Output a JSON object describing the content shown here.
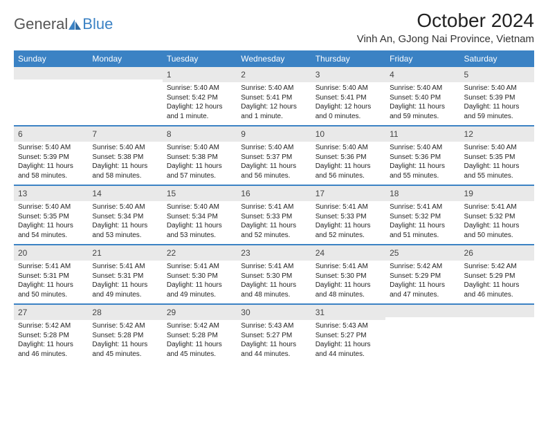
{
  "brand": {
    "part1": "General",
    "part2": "Blue"
  },
  "title": "October 2024",
  "location": "Vinh An, GJong Nai Province, Vietnam",
  "colors": {
    "accent": "#3b82c4",
    "header_bg": "#3b82c4",
    "header_text": "#ffffff",
    "daynum_bg": "#e9e9e9",
    "text": "#222222",
    "background": "#ffffff"
  },
  "typography": {
    "title_fontsize": 28,
    "location_fontsize": 15,
    "dayhead_fontsize": 12,
    "daynum_fontsize": 12,
    "detail_fontsize": 10
  },
  "day_headers": [
    "Sunday",
    "Monday",
    "Tuesday",
    "Wednesday",
    "Thursday",
    "Friday",
    "Saturday"
  ],
  "weeks": [
    [
      {
        "empty": true
      },
      {
        "empty": true
      },
      {
        "day": "1",
        "sunrise": "Sunrise: 5:40 AM",
        "sunset": "Sunset: 5:42 PM",
        "daylight": "Daylight: 12 hours and 1 minute."
      },
      {
        "day": "2",
        "sunrise": "Sunrise: 5:40 AM",
        "sunset": "Sunset: 5:41 PM",
        "daylight": "Daylight: 12 hours and 1 minute."
      },
      {
        "day": "3",
        "sunrise": "Sunrise: 5:40 AM",
        "sunset": "Sunset: 5:41 PM",
        "daylight": "Daylight: 12 hours and 0 minutes."
      },
      {
        "day": "4",
        "sunrise": "Sunrise: 5:40 AM",
        "sunset": "Sunset: 5:40 PM",
        "daylight": "Daylight: 11 hours and 59 minutes."
      },
      {
        "day": "5",
        "sunrise": "Sunrise: 5:40 AM",
        "sunset": "Sunset: 5:39 PM",
        "daylight": "Daylight: 11 hours and 59 minutes."
      }
    ],
    [
      {
        "day": "6",
        "sunrise": "Sunrise: 5:40 AM",
        "sunset": "Sunset: 5:39 PM",
        "daylight": "Daylight: 11 hours and 58 minutes."
      },
      {
        "day": "7",
        "sunrise": "Sunrise: 5:40 AM",
        "sunset": "Sunset: 5:38 PM",
        "daylight": "Daylight: 11 hours and 58 minutes."
      },
      {
        "day": "8",
        "sunrise": "Sunrise: 5:40 AM",
        "sunset": "Sunset: 5:38 PM",
        "daylight": "Daylight: 11 hours and 57 minutes."
      },
      {
        "day": "9",
        "sunrise": "Sunrise: 5:40 AM",
        "sunset": "Sunset: 5:37 PM",
        "daylight": "Daylight: 11 hours and 56 minutes."
      },
      {
        "day": "10",
        "sunrise": "Sunrise: 5:40 AM",
        "sunset": "Sunset: 5:36 PM",
        "daylight": "Daylight: 11 hours and 56 minutes."
      },
      {
        "day": "11",
        "sunrise": "Sunrise: 5:40 AM",
        "sunset": "Sunset: 5:36 PM",
        "daylight": "Daylight: 11 hours and 55 minutes."
      },
      {
        "day": "12",
        "sunrise": "Sunrise: 5:40 AM",
        "sunset": "Sunset: 5:35 PM",
        "daylight": "Daylight: 11 hours and 55 minutes."
      }
    ],
    [
      {
        "day": "13",
        "sunrise": "Sunrise: 5:40 AM",
        "sunset": "Sunset: 5:35 PM",
        "daylight": "Daylight: 11 hours and 54 minutes."
      },
      {
        "day": "14",
        "sunrise": "Sunrise: 5:40 AM",
        "sunset": "Sunset: 5:34 PM",
        "daylight": "Daylight: 11 hours and 53 minutes."
      },
      {
        "day": "15",
        "sunrise": "Sunrise: 5:40 AM",
        "sunset": "Sunset: 5:34 PM",
        "daylight": "Daylight: 11 hours and 53 minutes."
      },
      {
        "day": "16",
        "sunrise": "Sunrise: 5:41 AM",
        "sunset": "Sunset: 5:33 PM",
        "daylight": "Daylight: 11 hours and 52 minutes."
      },
      {
        "day": "17",
        "sunrise": "Sunrise: 5:41 AM",
        "sunset": "Sunset: 5:33 PM",
        "daylight": "Daylight: 11 hours and 52 minutes."
      },
      {
        "day": "18",
        "sunrise": "Sunrise: 5:41 AM",
        "sunset": "Sunset: 5:32 PM",
        "daylight": "Daylight: 11 hours and 51 minutes."
      },
      {
        "day": "19",
        "sunrise": "Sunrise: 5:41 AM",
        "sunset": "Sunset: 5:32 PM",
        "daylight": "Daylight: 11 hours and 50 minutes."
      }
    ],
    [
      {
        "day": "20",
        "sunrise": "Sunrise: 5:41 AM",
        "sunset": "Sunset: 5:31 PM",
        "daylight": "Daylight: 11 hours and 50 minutes."
      },
      {
        "day": "21",
        "sunrise": "Sunrise: 5:41 AM",
        "sunset": "Sunset: 5:31 PM",
        "daylight": "Daylight: 11 hours and 49 minutes."
      },
      {
        "day": "22",
        "sunrise": "Sunrise: 5:41 AM",
        "sunset": "Sunset: 5:30 PM",
        "daylight": "Daylight: 11 hours and 49 minutes."
      },
      {
        "day": "23",
        "sunrise": "Sunrise: 5:41 AM",
        "sunset": "Sunset: 5:30 PM",
        "daylight": "Daylight: 11 hours and 48 minutes."
      },
      {
        "day": "24",
        "sunrise": "Sunrise: 5:41 AM",
        "sunset": "Sunset: 5:30 PM",
        "daylight": "Daylight: 11 hours and 48 minutes."
      },
      {
        "day": "25",
        "sunrise": "Sunrise: 5:42 AM",
        "sunset": "Sunset: 5:29 PM",
        "daylight": "Daylight: 11 hours and 47 minutes."
      },
      {
        "day": "26",
        "sunrise": "Sunrise: 5:42 AM",
        "sunset": "Sunset: 5:29 PM",
        "daylight": "Daylight: 11 hours and 46 minutes."
      }
    ],
    [
      {
        "day": "27",
        "sunrise": "Sunrise: 5:42 AM",
        "sunset": "Sunset: 5:28 PM",
        "daylight": "Daylight: 11 hours and 46 minutes."
      },
      {
        "day": "28",
        "sunrise": "Sunrise: 5:42 AM",
        "sunset": "Sunset: 5:28 PM",
        "daylight": "Daylight: 11 hours and 45 minutes."
      },
      {
        "day": "29",
        "sunrise": "Sunrise: 5:42 AM",
        "sunset": "Sunset: 5:28 PM",
        "daylight": "Daylight: 11 hours and 45 minutes."
      },
      {
        "day": "30",
        "sunrise": "Sunrise: 5:43 AM",
        "sunset": "Sunset: 5:27 PM",
        "daylight": "Daylight: 11 hours and 44 minutes."
      },
      {
        "day": "31",
        "sunrise": "Sunrise: 5:43 AM",
        "sunset": "Sunset: 5:27 PM",
        "daylight": "Daylight: 11 hours and 44 minutes."
      },
      {
        "empty": true
      },
      {
        "empty": true
      }
    ]
  ]
}
